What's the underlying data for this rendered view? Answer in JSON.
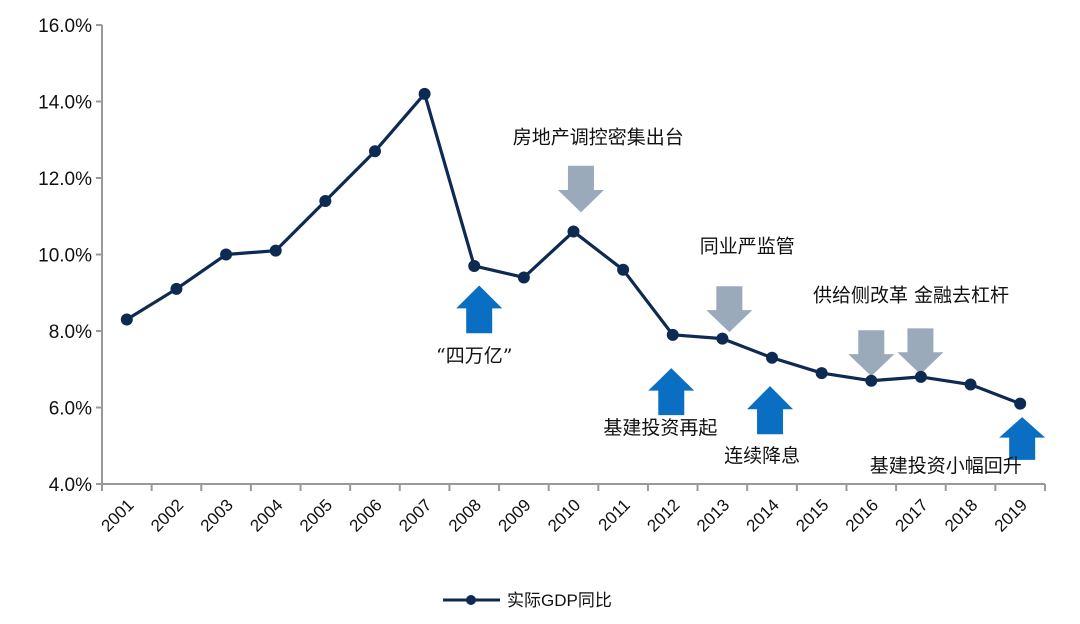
{
  "chart_data": {
    "type": "line",
    "title": "",
    "xlabel": "",
    "ylabel": "",
    "ylim": [
      4,
      16
    ],
    "yticks": [
      4,
      6,
      8,
      10,
      12,
      14,
      16
    ],
    "ytick_labels": [
      "4.0%",
      "6.0%",
      "8.0%",
      "10.0%",
      "12.0%",
      "14.0%",
      "16.0%"
    ],
    "grid": false,
    "categories": [
      "2001",
      "2002",
      "2003",
      "2004",
      "2005",
      "2006",
      "2007",
      "2008",
      "2009",
      "2010",
      "2011",
      "2012",
      "2013",
      "2014",
      "2015",
      "2016",
      "2017",
      "2018",
      "2019"
    ],
    "series": [
      {
        "name": "实际GDP同比",
        "color": "#0d2a52",
        "values": [
          8.3,
          9.1,
          10.0,
          10.1,
          11.4,
          12.7,
          14.2,
          9.7,
          9.4,
          10.6,
          9.6,
          7.9,
          7.8,
          7.3,
          6.9,
          6.7,
          6.8,
          6.6,
          6.1
        ]
      }
    ],
    "legend": {
      "position": "bottom",
      "label": "实际GDP同比"
    },
    "colors": {
      "up_arrow": "#0a6fc2",
      "down_arrow": "#9aaabb",
      "axis": "#999999"
    },
    "arrows": [
      {
        "direction": "up",
        "year": 2008.1,
        "from": 7.94,
        "to": 9.19
      },
      {
        "direction": "down",
        "year": 2010.15,
        "from": 12.32,
        "to": 11.1
      },
      {
        "direction": "up",
        "year": 2011.97,
        "from": 5.8,
        "to": 7.03
      },
      {
        "direction": "down",
        "year": 2013.14,
        "from": 9.17,
        "to": 7.97
      },
      {
        "direction": "up",
        "year": 2013.96,
        "from": 5.3,
        "to": 6.56
      },
      {
        "direction": "down",
        "year": 2016.0,
        "from": 8.02,
        "to": 6.82
      },
      {
        "direction": "down",
        "year": 2016.99,
        "from": 8.07,
        "to": 6.87
      },
      {
        "direction": "up",
        "year": 2019.04,
        "from": 4.63,
        "to": 5.75
      }
    ],
    "annotations": [
      {
        "text": "房地产调控密集出台",
        "year": 2010.5,
        "value": 13.08
      },
      {
        "text": "同业严监管",
        "year": 2013.5,
        "value": 10.24
      },
      {
        "text": "供给侧改革 金融去杠杆",
        "year": 2016.8,
        "value": 8.96
      },
      {
        "text": "“四万亿”",
        "year": 2008.0,
        "value": 7.37
      },
      {
        "text": "基建投资再起",
        "year": 2011.75,
        "value": 5.49
      },
      {
        "text": "连续降息",
        "year": 2013.8,
        "value": 4.76
      },
      {
        "text": "基建投资小幅回升",
        "year": 2017.5,
        "value": 4.5
      }
    ]
  }
}
